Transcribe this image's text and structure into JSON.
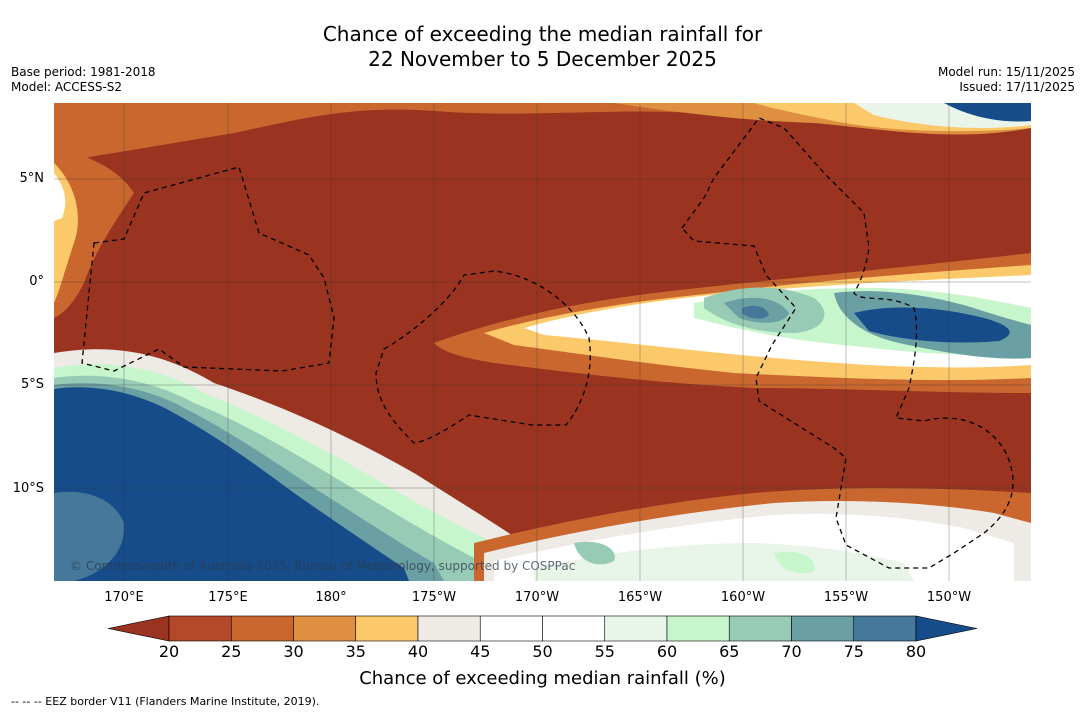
{
  "title": {
    "line1": "Chance of exceeding the median rainfall for",
    "line2": "22 November to 5 December 2025"
  },
  "meta": {
    "base_period": "Base period: 1981-2018",
    "model": "Model: ACCESS-S2",
    "model_run": "Model run: 15/11/2025",
    "issued": "Issued: 17/11/2025"
  },
  "credit": "© Commonwealth of Australia 2025, Bureau of Meteorology, supported by COSPPac",
  "lat_labels": [
    "5°N",
    "0°",
    "5°S",
    "10°S"
  ],
  "lon_labels": [
    "170°E",
    "175°E",
    "180°",
    "175°W",
    "170°W",
    "165°W",
    "160°W",
    "155°W",
    "150°W"
  ],
  "colorbar": {
    "title": "Chance of exceeding median rainfall (%)",
    "ticks": [
      "20",
      "25",
      "30",
      "35",
      "40",
      "45",
      "50",
      "55",
      "60",
      "65",
      "70",
      "75",
      "80"
    ],
    "colors": [
      "#9a3420",
      "#b5482a",
      "#c9672f",
      "#de9040",
      "#fbc86a",
      "#eeeae5",
      "#ffffff",
      "#ffffff",
      "#eaf5ea",
      "#c8f6cc",
      "#98cbb5",
      "#6a9fa3",
      "#46789b",
      "#164c8a"
    ]
  },
  "footnote": "-- -- -- EEZ border V11 (Flanders Marine Institute, 2019)."
}
